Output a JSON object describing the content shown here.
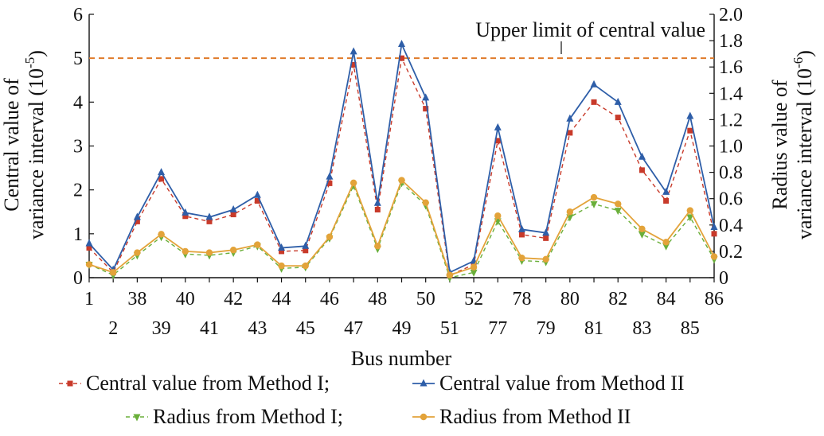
{
  "chart_data": {
    "type": "line",
    "xlabel": "Bus number",
    "ylabel_left_lines": [
      "Central value of",
      "variance interval (10"
    ],
    "ylabel_left_exp": "-5",
    "ylabel_left_close": ")",
    "ylabel_right_lines": [
      "Radius value of",
      "variance interval (10"
    ],
    "ylabel_right_exp": "-6",
    "ylabel_right_close": ")",
    "categories": [
      "1",
      "2",
      "38",
      "39",
      "40",
      "41",
      "42",
      "43",
      "44",
      "45",
      "46",
      "47",
      "48",
      "49",
      "50",
      "51",
      "52",
      "77",
      "78",
      "79",
      "80",
      "81",
      "82",
      "83",
      "84",
      "85",
      "86"
    ],
    "y_left_ticks": [
      "0",
      "1",
      "2",
      "3",
      "4",
      "5",
      "6"
    ],
    "y_left_range": [
      0,
      6
    ],
    "y_right_ticks": [
      "0",
      "0.2",
      "0.4",
      "0.6",
      "0.8",
      "1.0",
      "1.2",
      "1.4",
      "1.6",
      "1.8",
      "2.0"
    ],
    "y_right_range": [
      0,
      2.0
    ],
    "annotation": "Upper limit of central value",
    "reference_line": {
      "axis": "left",
      "value": 5,
      "color": "#E07B2A"
    },
    "series": [
      {
        "name": "Central value from Method I;",
        "axis": "left",
        "color": "#C83A2A",
        "dash": true,
        "marker": "square",
        "values": [
          0.68,
          0.12,
          1.28,
          2.25,
          1.4,
          1.28,
          1.44,
          1.75,
          0.6,
          0.62,
          2.15,
          4.85,
          1.55,
          5.0,
          3.85,
          0.05,
          0.3,
          3.12,
          0.98,
          0.9,
          3.3,
          4.0,
          3.65,
          2.45,
          1.75,
          3.35,
          1.0
        ]
      },
      {
        "name": "Central value from Method II",
        "axis": "left",
        "color": "#2E5EA8",
        "dash": false,
        "marker": "triangle-up",
        "values": [
          0.78,
          0.18,
          1.38,
          2.4,
          1.48,
          1.38,
          1.55,
          1.88,
          0.68,
          0.72,
          2.3,
          5.15,
          1.7,
          5.32,
          4.1,
          0.12,
          0.38,
          3.42,
          1.1,
          1.02,
          3.62,
          4.4,
          4.0,
          2.75,
          1.95,
          3.68,
          1.15
        ]
      },
      {
        "name": "Radius from Method I;",
        "axis": "right",
        "color": "#6AAF3A",
        "dash": true,
        "marker": "triangle-down",
        "values": [
          0.1,
          0.02,
          0.17,
          0.31,
          0.18,
          0.17,
          0.19,
          0.24,
          0.07,
          0.08,
          0.3,
          0.7,
          0.22,
          0.72,
          0.55,
          0.0,
          0.04,
          0.43,
          0.13,
          0.12,
          0.46,
          0.56,
          0.51,
          0.33,
          0.24,
          0.46,
          0.14
        ]
      },
      {
        "name": "Radius from Method II",
        "axis": "right",
        "color": "#E3A33A",
        "dash": false,
        "marker": "circle",
        "values": [
          0.1,
          0.04,
          0.19,
          0.33,
          0.2,
          0.19,
          0.21,
          0.25,
          0.09,
          0.09,
          0.31,
          0.72,
          0.24,
          0.74,
          0.57,
          0.02,
          0.08,
          0.47,
          0.15,
          0.14,
          0.5,
          0.61,
          0.56,
          0.37,
          0.27,
          0.51,
          0.16
        ]
      }
    ],
    "legend": {
      "placement": "bottom",
      "columns": 2
    },
    "grid": false
  }
}
